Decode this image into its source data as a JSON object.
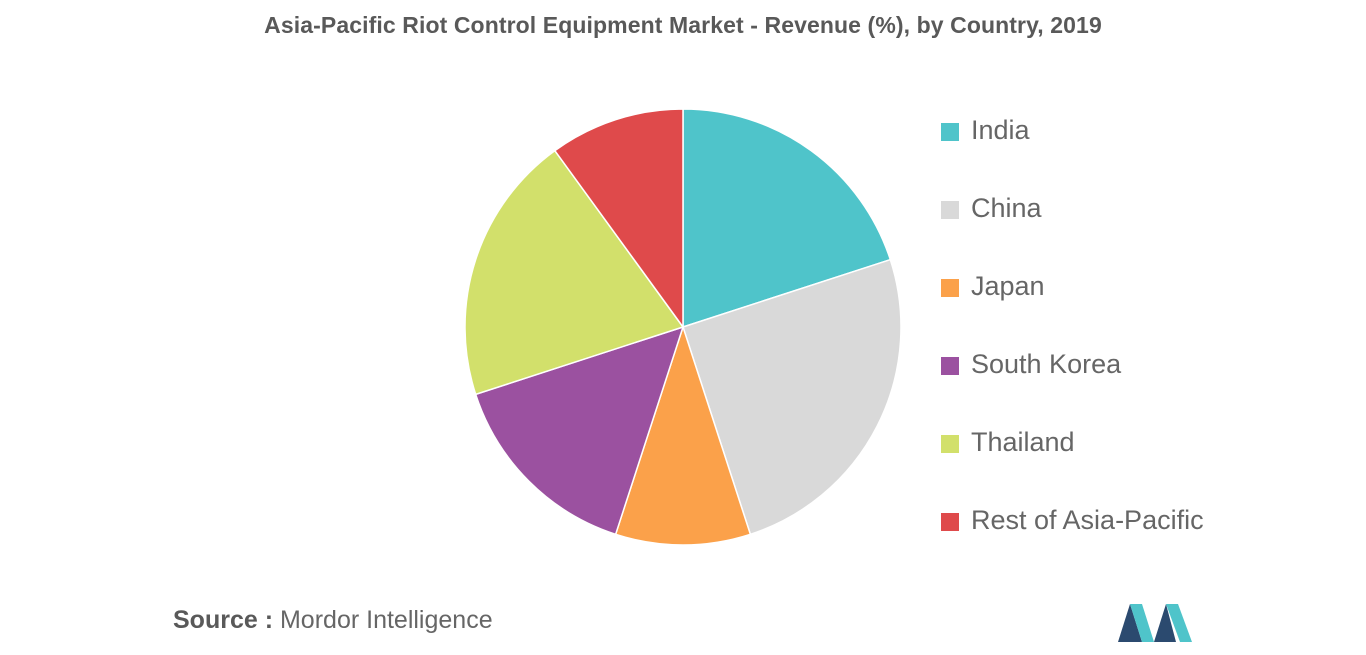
{
  "title": "Asia-Pacific Riot Control Equipment Market - Revenue (%), by Country, 2019",
  "chart_data": {
    "type": "pie",
    "title": "Asia-Pacific Riot Control Equipment Market - Revenue (%), by Country, 2019",
    "categories": [
      "India",
      "China",
      "Japan",
      "South Korea",
      "Thailand",
      "Rest of Asia-Pacific"
    ],
    "values": [
      20,
      25,
      10,
      15,
      20,
      10
    ],
    "colors": [
      "#4fc4ca",
      "#d9d9d9",
      "#fba14a",
      "#9b51a0",
      "#d2e06b",
      "#df4a4b"
    ],
    "start_angle_deg": 0,
    "direction": "clockwise",
    "legend_position": "right"
  },
  "source": {
    "prefix": "Source :",
    "text": "Mordor Intelligence"
  },
  "logo": {
    "icon": "mordor-intelligence-logo-icon",
    "colors": [
      "#2b4a6f",
      "#4fc4ca"
    ]
  }
}
